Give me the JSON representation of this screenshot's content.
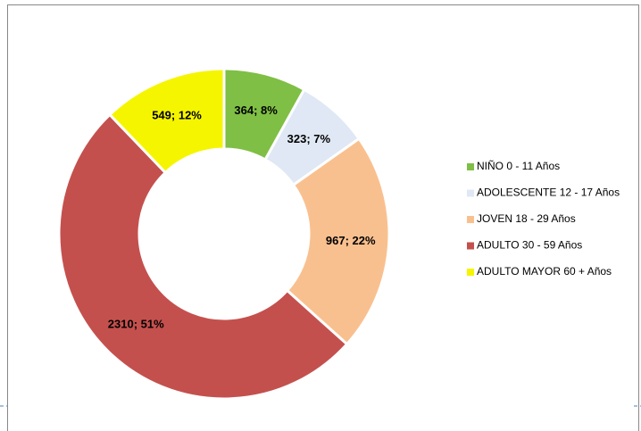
{
  "chart_data": {
    "type": "donut",
    "categories": [
      "NIÑO 0 - 11 Años",
      "ADOLESCENTE 12 - 17 Años",
      "JOVEN 18 - 29 Años",
      "ADULTO 30 - 59 Años",
      "ADULTO MAYOR 60 + Años"
    ],
    "values": [
      364,
      323,
      967,
      2310,
      549
    ],
    "value_labels": [
      "364; 8%",
      "323; 7%",
      "967; 22%",
      "2310; 51%",
      "549; 12%"
    ],
    "colors": [
      "#7fbf45",
      "#dfe8f4",
      "#f9c08f",
      "#c4504d",
      "#f6f500"
    ],
    "legend": "right"
  }
}
